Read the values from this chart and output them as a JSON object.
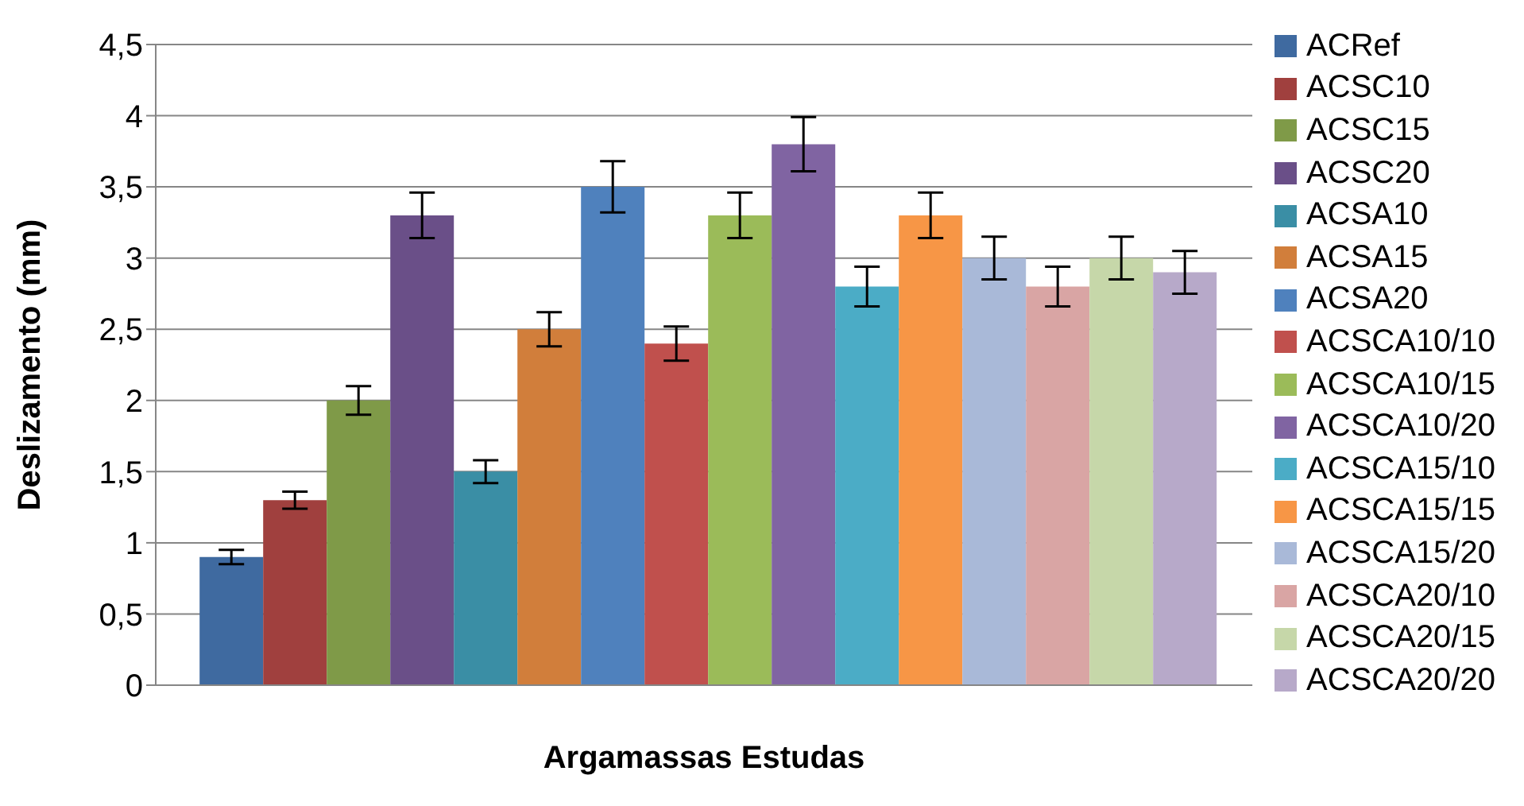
{
  "chart_data": {
    "type": "bar",
    "xlabel": "Argamassas Estudas",
    "ylabel": "Deslizamento (mm)",
    "categories": [
      null
    ],
    "ylim": [
      0,
      4.5
    ],
    "yticks": [
      0,
      {
        "value": 0.5,
        "label": "0,5"
      },
      1,
      {
        "value": 1.5,
        "label": "1,5"
      },
      2,
      {
        "value": 2.5,
        "label": "2,5"
      },
      3,
      {
        "value": 3.5,
        "label": "3,5"
      },
      4,
      {
        "value": 4.5,
        "label": "4,5"
      }
    ],
    "grid": "y",
    "legend": "right",
    "series": [
      {
        "name": "ACRef",
        "color": "#3f6aa0",
        "values": [
          0.9
        ],
        "errors": [
          0.05
        ]
      },
      {
        "name": "ACSC10",
        "color": "#a0403e",
        "values": [
          1.3
        ],
        "errors": [
          0.06
        ]
      },
      {
        "name": "ACSC15",
        "color": "#7f9a48",
        "values": [
          2.0
        ],
        "errors": [
          0.1
        ]
      },
      {
        "name": "ACSC20",
        "color": "#6a4f88",
        "values": [
          3.3
        ],
        "errors": [
          0.16
        ]
      },
      {
        "name": "ACSA10",
        "color": "#3a8ea5",
        "values": [
          1.5
        ],
        "errors": [
          0.08
        ]
      },
      {
        "name": "ACSA15",
        "color": "#d17e3b",
        "values": [
          2.5
        ],
        "errors": [
          0.12
        ]
      },
      {
        "name": "ACSA20",
        "color": "#4f81bd",
        "values": [
          3.5
        ],
        "errors": [
          0.18
        ]
      },
      {
        "name": "ACSCA10/10",
        "color": "#c0504d",
        "values": [
          2.4
        ],
        "errors": [
          0.12
        ]
      },
      {
        "name": "ACSCA10/15",
        "color": "#9bbb59",
        "values": [
          3.3
        ],
        "errors": [
          0.16
        ]
      },
      {
        "name": "ACSCA10/20",
        "color": "#8064a2",
        "values": [
          3.8
        ],
        "errors": [
          0.19
        ]
      },
      {
        "name": "ACSCA15/10",
        "color": "#4bacc6",
        "values": [
          2.8
        ],
        "errors": [
          0.14
        ]
      },
      {
        "name": "ACSCA15/15",
        "color": "#f79646",
        "values": [
          3.3
        ],
        "errors": [
          0.16
        ]
      },
      {
        "name": "ACSCA15/20",
        "color": "#a9b9d8",
        "values": [
          3.0
        ],
        "errors": [
          0.15
        ]
      },
      {
        "name": "ACSCA20/10",
        "color": "#d9a5a4",
        "values": [
          2.8
        ],
        "errors": [
          0.14
        ]
      },
      {
        "name": "ACSCA20/15",
        "color": "#c6d7a9",
        "values": [
          3.0
        ],
        "errors": [
          0.15
        ]
      },
      {
        "name": "ACSCA20/20",
        "color": "#b7a9c9",
        "values": [
          2.9
        ],
        "errors": [
          0.15
        ]
      }
    ]
  }
}
